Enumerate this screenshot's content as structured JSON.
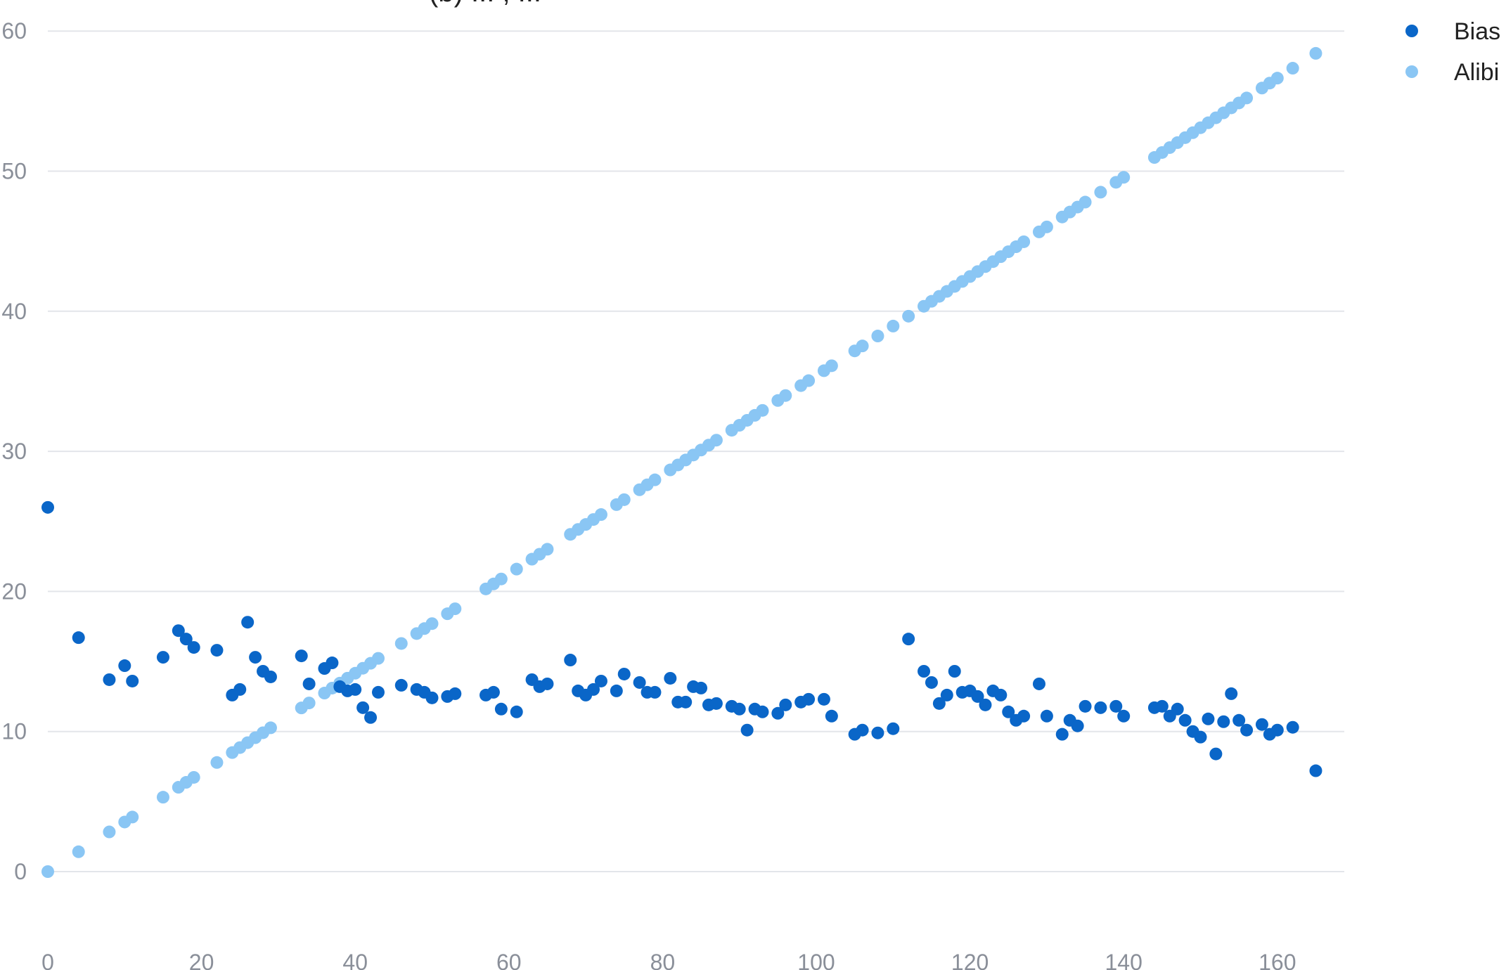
{
  "chart_data": {
    "type": "scatter",
    "title": "(b) ... , ...",
    "xlim": [
      0,
      170
    ],
    "ylim": [
      -5,
      60
    ],
    "x_ticks": [
      0,
      20,
      40,
      60,
      80,
      100,
      120,
      140,
      160
    ],
    "y_ticks": [
      0,
      10,
      20,
      30,
      40,
      50,
      60
    ],
    "grid": "horizontal",
    "legend_position": "top-right",
    "series": [
      {
        "name": "Bias",
        "color": "#0a66c8",
        "points": [
          [
            0,
            26.0
          ],
          [
            4,
            16.7
          ],
          [
            8,
            13.7
          ],
          [
            10,
            14.7
          ],
          [
            11,
            13.6
          ],
          [
            15,
            15.3
          ],
          [
            17,
            17.2
          ],
          [
            18,
            16.6
          ],
          [
            19,
            16.0
          ],
          [
            22,
            15.8
          ],
          [
            24,
            12.6
          ],
          [
            25,
            13.0
          ],
          [
            26,
            17.8
          ],
          [
            27,
            15.3
          ],
          [
            28,
            14.3
          ],
          [
            29,
            13.9
          ],
          [
            33,
            15.4
          ],
          [
            34,
            13.4
          ],
          [
            36,
            14.5
          ],
          [
            37,
            14.9
          ],
          [
            38,
            13.2
          ],
          [
            39,
            12.9
          ],
          [
            40,
            13.0
          ],
          [
            41,
            11.7
          ],
          [
            42,
            11.0
          ],
          [
            43,
            12.8
          ],
          [
            46,
            13.3
          ],
          [
            48,
            13.0
          ],
          [
            49,
            12.8
          ],
          [
            50,
            12.4
          ],
          [
            52,
            12.5
          ],
          [
            53,
            12.7
          ],
          [
            57,
            12.6
          ],
          [
            58,
            12.8
          ],
          [
            59,
            11.6
          ],
          [
            61,
            11.4
          ],
          [
            63,
            13.7
          ],
          [
            64,
            13.2
          ],
          [
            65,
            13.4
          ],
          [
            68,
            15.1
          ],
          [
            69,
            12.9
          ],
          [
            70,
            12.6
          ],
          [
            71,
            13.0
          ],
          [
            72,
            13.6
          ],
          [
            74,
            12.9
          ],
          [
            75,
            14.1
          ],
          [
            77,
            13.5
          ],
          [
            78,
            12.8
          ],
          [
            79,
            12.8
          ],
          [
            81,
            13.8
          ],
          [
            82,
            12.1
          ],
          [
            83,
            12.1
          ],
          [
            84,
            13.2
          ],
          [
            85,
            13.1
          ],
          [
            86,
            11.9
          ],
          [
            87,
            12.0
          ],
          [
            89,
            11.8
          ],
          [
            90,
            11.6
          ],
          [
            91,
            10.1
          ],
          [
            92,
            11.6
          ],
          [
            93,
            11.4
          ],
          [
            95,
            11.3
          ],
          [
            96,
            11.9
          ],
          [
            98,
            12.1
          ],
          [
            99,
            12.3
          ],
          [
            101,
            12.3
          ],
          [
            102,
            11.1
          ],
          [
            105,
            9.8
          ],
          [
            106,
            10.1
          ],
          [
            108,
            9.9
          ],
          [
            110,
            10.2
          ],
          [
            112,
            16.6
          ],
          [
            114,
            14.3
          ],
          [
            115,
            13.5
          ],
          [
            116,
            12.0
          ],
          [
            117,
            12.6
          ],
          [
            118,
            14.3
          ],
          [
            119,
            12.8
          ],
          [
            120,
            12.9
          ],
          [
            121,
            12.5
          ],
          [
            122,
            11.9
          ],
          [
            123,
            12.9
          ],
          [
            124,
            12.6
          ],
          [
            125,
            11.4
          ],
          [
            126,
            10.8
          ],
          [
            127,
            11.1
          ],
          [
            129,
            13.4
          ],
          [
            130,
            11.1
          ],
          [
            132,
            9.8
          ],
          [
            133,
            10.8
          ],
          [
            134,
            10.4
          ],
          [
            135,
            11.8
          ],
          [
            137,
            11.7
          ],
          [
            139,
            11.8
          ],
          [
            140,
            11.1
          ],
          [
            144,
            11.7
          ],
          [
            145,
            11.8
          ],
          [
            146,
            11.1
          ],
          [
            147,
            11.6
          ],
          [
            148,
            10.8
          ],
          [
            149,
            10.0
          ],
          [
            150,
            9.6
          ],
          [
            151,
            10.9
          ],
          [
            152,
            8.4
          ],
          [
            153,
            10.7
          ],
          [
            154,
            12.7
          ],
          [
            155,
            10.8
          ],
          [
            156,
            10.1
          ],
          [
            158,
            10.5
          ],
          [
            159,
            9.8
          ],
          [
            160,
            10.1
          ],
          [
            162,
            10.3
          ],
          [
            165,
            7.2
          ]
        ]
      },
      {
        "name": "Alibi",
        "color": "#8ac6f4",
        "x": [
          0,
          4,
          8,
          10,
          11,
          15,
          17,
          18,
          19,
          22,
          24,
          25,
          26,
          27,
          28,
          29,
          33,
          34,
          36,
          37,
          38,
          39,
          40,
          41,
          42,
          43,
          46,
          48,
          49,
          50,
          52,
          53,
          57,
          58,
          59,
          61,
          63,
          64,
          65,
          68,
          69,
          70,
          71,
          72,
          74,
          75,
          77,
          78,
          79,
          81,
          82,
          83,
          84,
          85,
          86,
          87,
          89,
          90,
          91,
          92,
          93,
          95,
          96,
          98,
          99,
          101,
          102,
          105,
          106,
          108,
          110,
          112,
          114,
          115,
          116,
          117,
          118,
          119,
          120,
          121,
          122,
          123,
          124,
          125,
          126,
          127,
          129,
          130,
          132,
          133,
          134,
          135,
          137,
          139,
          140,
          144,
          145,
          146,
          147,
          148,
          149,
          150,
          151,
          152,
          153,
          154,
          155,
          156,
          158,
          159,
          160,
          162,
          165
        ],
        "slope": 0.354
      }
    ]
  }
}
